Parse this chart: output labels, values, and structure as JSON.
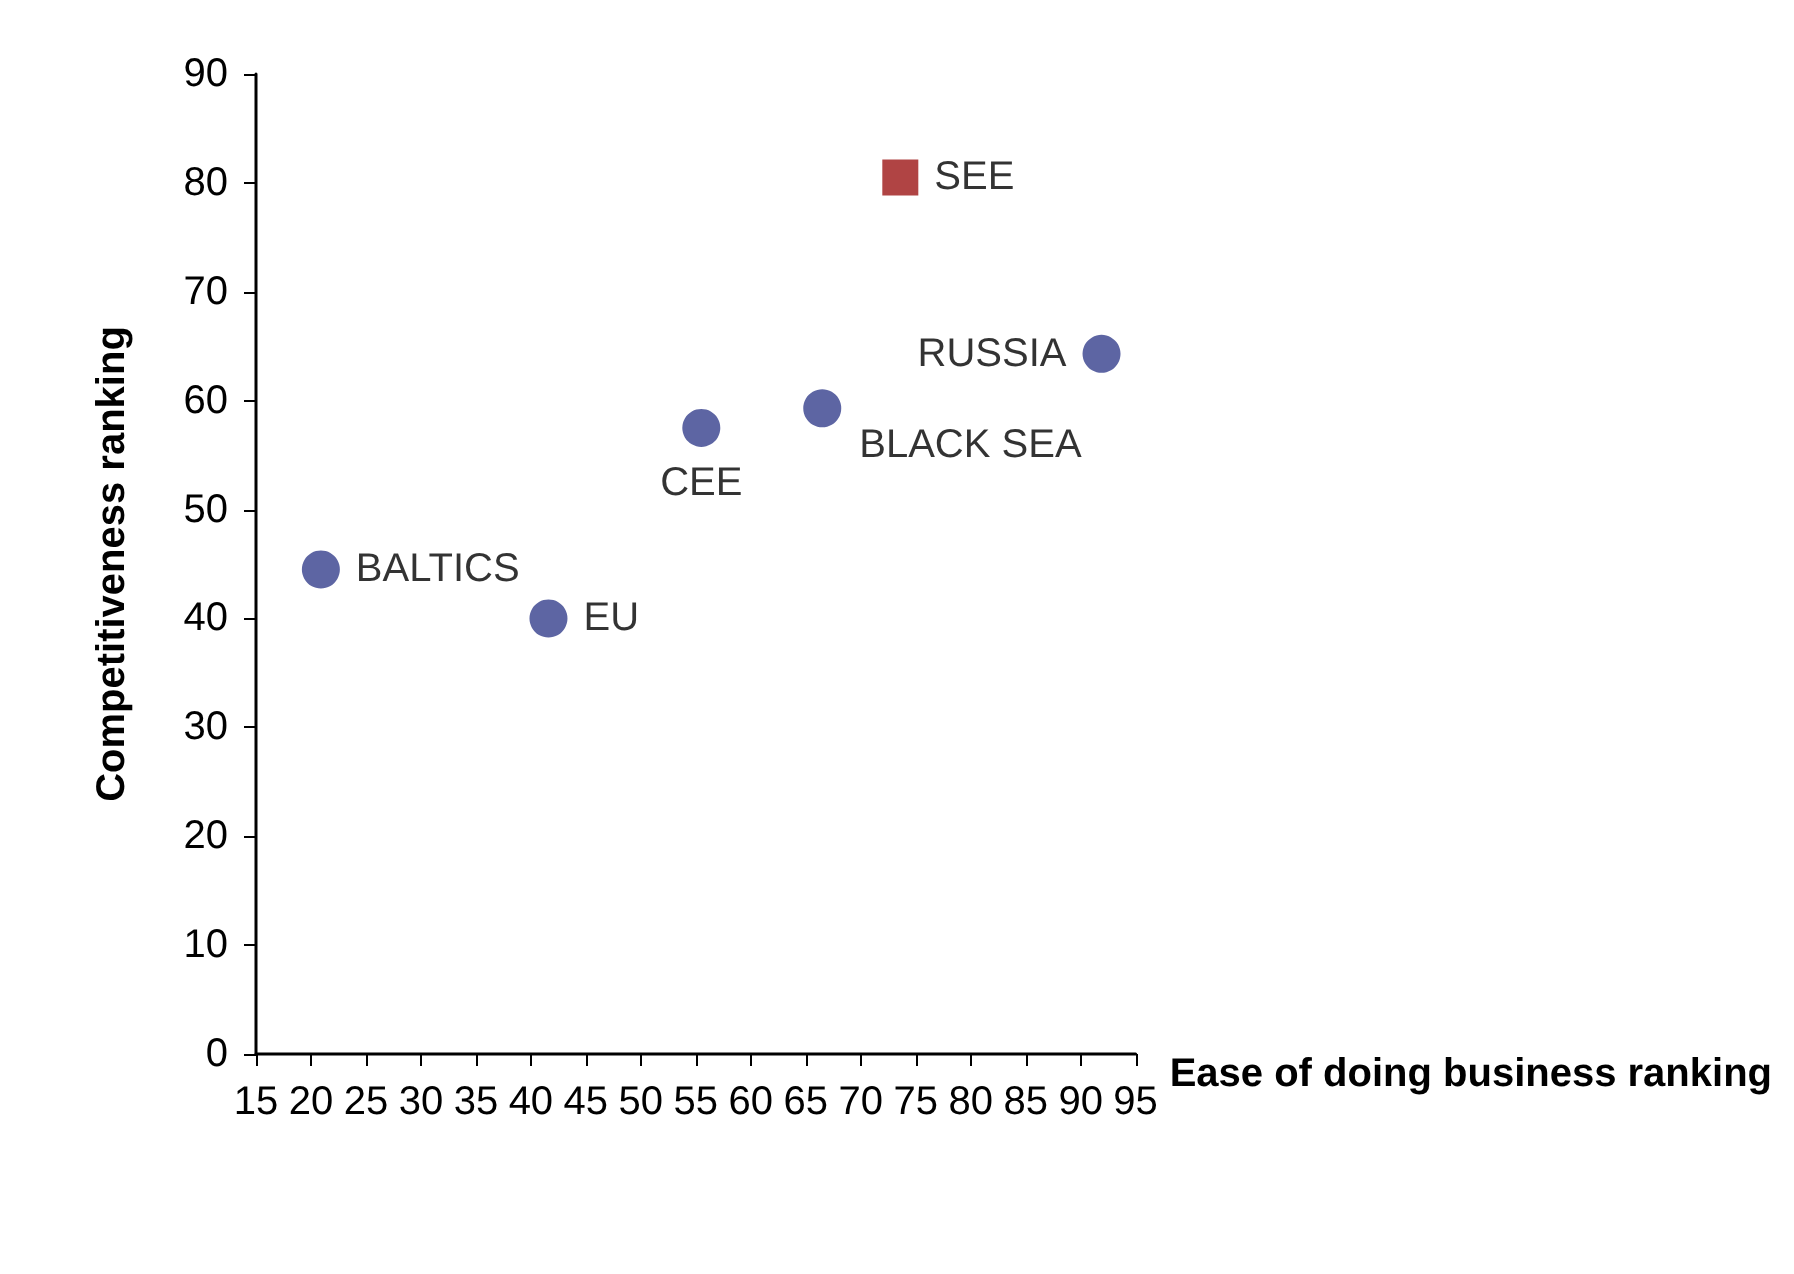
{
  "chart_data": {
    "type": "scatter",
    "xlabel": "Ease of doing business ranking",
    "ylabel": "Competitiveness ranking",
    "xlim": [
      15,
      95
    ],
    "xticks": [
      15,
      20,
      25,
      30,
      35,
      40,
      45,
      50,
      55,
      60,
      65,
      70,
      75,
      80,
      85,
      90,
      95
    ],
    "ylim": [
      0,
      90
    ],
    "yticks": [
      0,
      10,
      20,
      30,
      40,
      50,
      60,
      70,
      80,
      90
    ],
    "grid": false,
    "legend": false,
    "marker": "circle",
    "series": [
      {
        "name": "BALTICS",
        "color": "#353f8c",
        "x": [
          20.9
        ],
        "values": [
          44.5
        ]
      },
      {
        "name": "EU",
        "color": "#353f8c",
        "x": [
          41.6
        ],
        "values": [
          40
        ]
      },
      {
        "name": "CEE",
        "color": "#353f8c",
        "x": [
          55.5
        ],
        "values": [
          57.5
        ]
      },
      {
        "name": "BLACK SEA",
        "color": "#353f8c",
        "x": [
          66.5
        ],
        "values": [
          59.3
        ]
      },
      {
        "name": "SEE",
        "color": "#9c1515",
        "marker": "square",
        "x": [
          73.6
        ],
        "values": [
          80.5
        ]
      },
      {
        "name": "RUSSIA",
        "color": "#353f8c",
        "x": [
          91.9
        ],
        "values": [
          64.3
        ]
      }
    ]
  }
}
